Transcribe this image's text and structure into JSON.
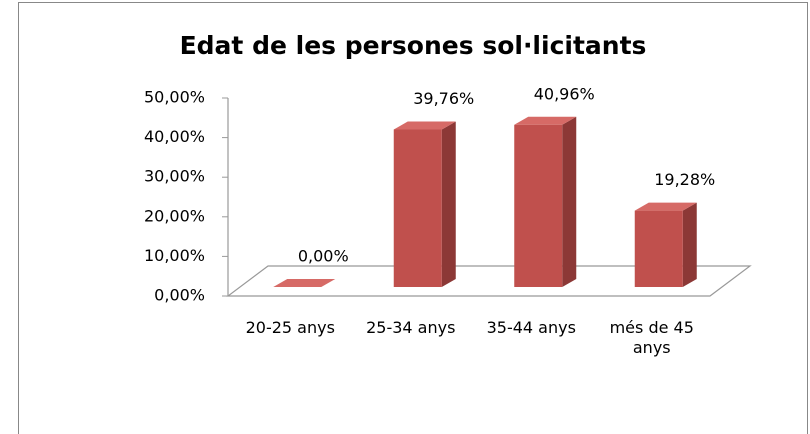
{
  "chart_data": {
    "type": "bar3d",
    "title": "Edat de les persones sol·licitants",
    "categories": [
      "20-25 anys",
      "25-34 anys",
      "35-44 anys",
      "més de 45 anys"
    ],
    "values": [
      0,
      39.76,
      40.96,
      19.28
    ],
    "value_labels": [
      "0,00%",
      "39,76%",
      "40,96%",
      "19,28%"
    ],
    "color": "#c0504d",
    "ylim": [
      0,
      50
    ],
    "yticks": [
      {
        "value": 0,
        "label": "0,00%"
      },
      {
        "value": 10,
        "label": "10,00%"
      },
      {
        "value": 20,
        "label": "20,00%"
      },
      {
        "value": 30,
        "label": "30,00%"
      },
      {
        "value": 40,
        "label": "40,00%"
      },
      {
        "value": 50,
        "label": "50,00%"
      }
    ],
    "grid": false
  }
}
